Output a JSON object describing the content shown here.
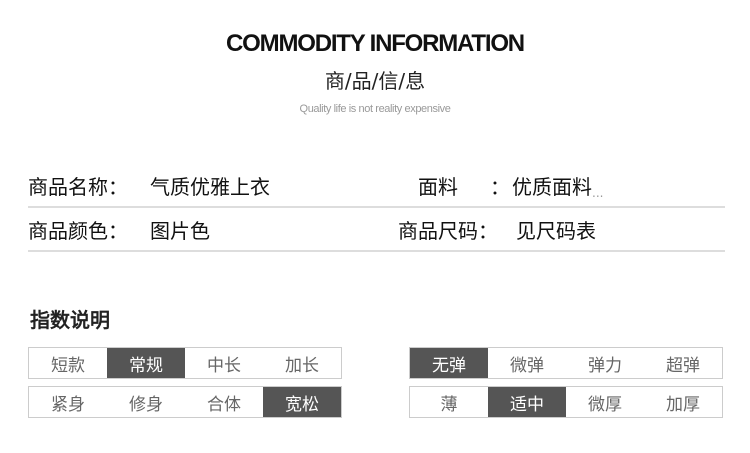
{
  "header": {
    "title": "COMMODITY INFORMATION",
    "subtitle": "商/品/信/息",
    "tagline": "Quality life is not reality expensive"
  },
  "info": {
    "name_label": "商品名称：",
    "name_value": "气质优雅上衣",
    "fabric_label": "面料",
    "fabric_colon": "：",
    "fabric_value": "优质面料",
    "fabric_more": "...",
    "color_label": "商品颜色：",
    "color_value": "图片色",
    "size_label": "商品尺码：",
    "size_value": "见尺码表"
  },
  "index": {
    "title": "指数说明",
    "groups": [
      {
        "options": [
          "短款",
          "常规",
          "中长",
          "加长"
        ],
        "selected": "常规"
      },
      {
        "options": [
          "无弹",
          "微弹",
          "弹力",
          "超弹"
        ],
        "selected": "无弹"
      },
      {
        "options": [
          "紧身",
          "修身",
          "合体",
          "宽松"
        ],
        "selected": "宽松"
      },
      {
        "options": [
          "薄",
          "适中",
          "微厚",
          "加厚"
        ],
        "selected": "适中"
      }
    ]
  },
  "colors": {
    "selected_fill": "#555555",
    "border": "#cccccc"
  }
}
